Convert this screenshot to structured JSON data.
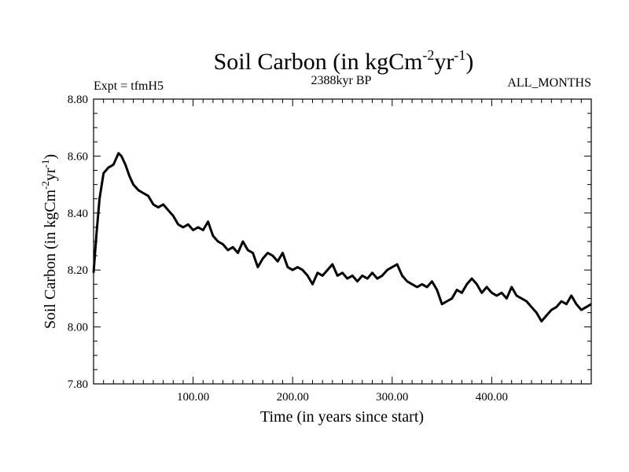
{
  "chart_data": {
    "type": "line",
    "title": "Soil Carbon (in kgCm",
    "title_sup1": "-2",
    "title_mid": "yr",
    "title_sup2": "-1",
    "title_end": ")",
    "subtitle_left": "Expt = tfmH5",
    "subtitle_center": "2388kyr BP",
    "subtitle_right": "ALL_MONTHS",
    "xlabel": "Time (in years since start)",
    "ylabel": "Soil Carbon (in kgCm",
    "ylabel_sup1": "-2",
    "ylabel_mid": "yr",
    "ylabel_sup2": "-1",
    "ylabel_end": ")",
    "xlim": [
      0,
      500
    ],
    "ylim": [
      7.8,
      8.8
    ],
    "x_ticks": [
      100,
      200,
      300,
      400
    ],
    "x_tick_labels": [
      "100.00",
      "200.00",
      "300.00",
      "400.00"
    ],
    "y_ticks": [
      7.8,
      8.0,
      8.2,
      8.4,
      8.6,
      8.8
    ],
    "y_tick_labels": [
      "7.80",
      "8.00",
      "8.20",
      "8.40",
      "8.60",
      "8.80"
    ],
    "series": [
      {
        "name": "Soil Carbon",
        "color": "#000000",
        "x": [
          0,
          3,
          6,
          10,
          15,
          20,
          25,
          28,
          32,
          36,
          40,
          45,
          50,
          55,
          60,
          65,
          70,
          75,
          80,
          85,
          90,
          95,
          100,
          105,
          110,
          115,
          120,
          125,
          130,
          135,
          140,
          145,
          150,
          155,
          160,
          165,
          170,
          175,
          180,
          185,
          190,
          195,
          200,
          205,
          210,
          215,
          220,
          225,
          230,
          235,
          240,
          245,
          250,
          255,
          260,
          265,
          270,
          275,
          280,
          285,
          290,
          295,
          300,
          305,
          310,
          315,
          320,
          325,
          330,
          335,
          340,
          345,
          350,
          355,
          360,
          365,
          370,
          375,
          380,
          385,
          390,
          395,
          400,
          405,
          410,
          415,
          420,
          425,
          430,
          435,
          440,
          445,
          450,
          455,
          460,
          465,
          470,
          475,
          480,
          485,
          490,
          495,
          500
        ],
        "y": [
          8.19,
          8.33,
          8.45,
          8.54,
          8.56,
          8.57,
          8.61,
          8.6,
          8.57,
          8.53,
          8.5,
          8.48,
          8.47,
          8.46,
          8.43,
          8.42,
          8.43,
          8.41,
          8.39,
          8.36,
          8.35,
          8.36,
          8.34,
          8.35,
          8.34,
          8.37,
          8.32,
          8.3,
          8.29,
          8.27,
          8.28,
          8.26,
          8.3,
          8.27,
          8.26,
          8.21,
          8.24,
          8.26,
          8.25,
          8.23,
          8.26,
          8.21,
          8.2,
          8.21,
          8.2,
          8.18,
          8.15,
          8.19,
          8.18,
          8.2,
          8.22,
          8.18,
          8.19,
          8.17,
          8.18,
          8.16,
          8.18,
          8.17,
          8.19,
          8.17,
          8.18,
          8.2,
          8.21,
          8.22,
          8.18,
          8.16,
          8.15,
          8.14,
          8.15,
          8.14,
          8.16,
          8.13,
          8.08,
          8.09,
          8.1,
          8.13,
          8.12,
          8.15,
          8.17,
          8.15,
          8.12,
          8.14,
          8.12,
          8.11,
          8.12,
          8.1,
          8.14,
          8.11,
          8.1,
          8.09,
          8.07,
          8.05,
          8.02,
          8.04,
          8.06,
          8.07,
          8.09,
          8.08,
          8.11,
          8.08,
          8.06,
          8.07,
          8.08
        ]
      }
    ]
  }
}
